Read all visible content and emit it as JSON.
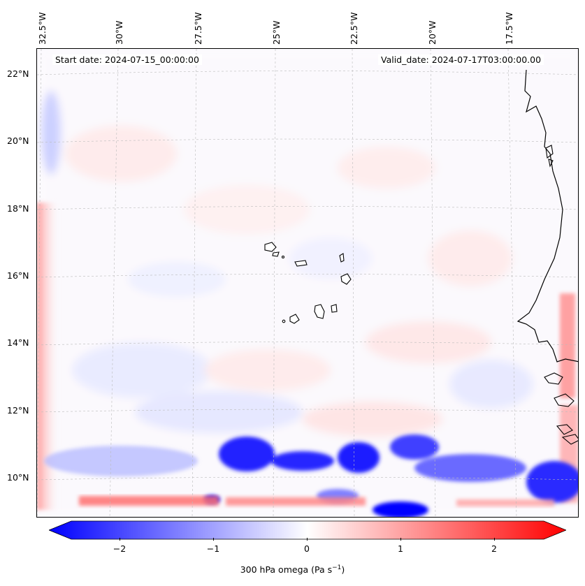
{
  "map": {
    "start_date": "Start date: 2024-07-15_00:00:00",
    "valid_date": "Valid_date: 2024-07-17T03:00:00.00",
    "lon_labels": [
      "32.5°W",
      "30°W",
      "27.5°W",
      "25°W",
      "22.5°W",
      "20°W",
      "17.5°W"
    ],
    "lat_labels": [
      "22°N",
      "20°N",
      "18°N",
      "16°N",
      "14°N",
      "12°N",
      "10°N"
    ],
    "field": "300 hPa omega",
    "region": "Cape Verde Islands and West African coast"
  },
  "colorbar": {
    "ticks": [
      "−2",
      "−1",
      "0",
      "1",
      "2"
    ],
    "label": "300 hPa omega (Pa s",
    "label_unit_exp": "−1",
    "label_close": ")",
    "range": [
      -2.6,
      2.6
    ],
    "neg_color": "#0000ff",
    "mid_color": "#ffffff",
    "pos_color": "#ff0000"
  }
}
